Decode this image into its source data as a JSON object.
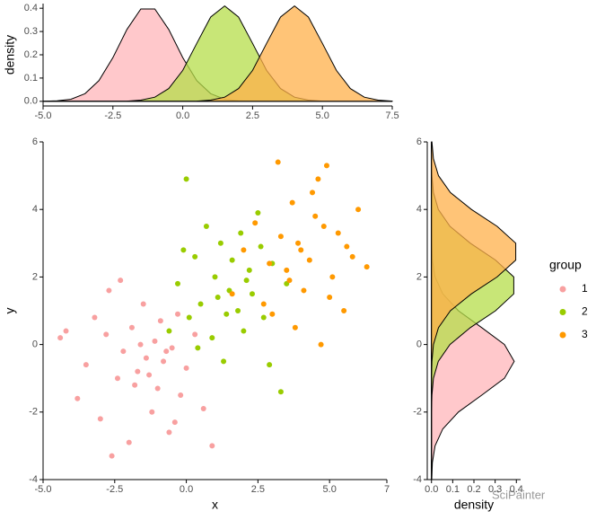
{
  "chart_data": [
    {
      "type": "scatter",
      "x_label": "x",
      "y_label": "y",
      "xlim": [
        -5,
        7
      ],
      "xticks": [
        {
          "value": -5,
          "label": "-5.0"
        },
        {
          "value": -2.5,
          "label": "-2.5"
        },
        {
          "value": 0,
          "label": "0.0"
        },
        {
          "value": 2.5,
          "label": "2.5"
        },
        {
          "value": 5,
          "label": "5.0"
        },
        7
      ],
      "ylim": [
        -4,
        6
      ],
      "yticks": [
        -4,
        -2,
        0,
        2,
        4,
        6
      ],
      "legend_title": "group",
      "legend": "right",
      "series": [
        {
          "name": "1",
          "color": "#f8a0a0",
          "x": [
            -4.4,
            -4.2,
            -3.8,
            -3.5,
            -3.2,
            -3.0,
            -2.8,
            -2.6,
            -2.7,
            -2.4,
            -2.2,
            -2.0,
            -1.9,
            -1.7,
            -1.5,
            -1.4,
            -1.2,
            -1.1,
            -1.0,
            -0.9,
            -0.8,
            -0.6,
            -0.5,
            -0.3,
            -0.2,
            0.0,
            0.3,
            0.6,
            0.9,
            -1.8,
            -1.3,
            -0.7,
            -2.3,
            -1.6,
            -0.4
          ],
          "values": [
            0.2,
            0.4,
            -1.6,
            -0.6,
            0.8,
            -2.2,
            0.3,
            -3.3,
            1.6,
            -1.0,
            -0.2,
            -2.9,
            0.5,
            -0.8,
            1.2,
            -0.4,
            -2.0,
            0.1,
            -1.3,
            0.7,
            -0.5,
            -2.6,
            -0.1,
            0.9,
            -1.5,
            -0.7,
            0.3,
            -1.9,
            -3.0,
            -1.2,
            -0.9,
            -0.2,
            1.9,
            0.0,
            -2.3
          ]
        },
        {
          "name": "2",
          "color": "#99cc00",
          "x": [
            -0.6,
            -0.3,
            0.0,
            0.1,
            0.3,
            0.5,
            0.7,
            0.9,
            1.0,
            1.2,
            1.3,
            1.5,
            1.6,
            1.8,
            1.9,
            2.0,
            2.2,
            2.3,
            2.5,
            2.7,
            2.9,
            3.0,
            3.3,
            3.5,
            0.4,
            1.1,
            2.6,
            -0.1,
            1.4,
            2.1
          ],
          "values": [
            0.4,
            1.8,
            4.9,
            0.8,
            2.6,
            1.2,
            3.5,
            0.2,
            2.0,
            3.0,
            -0.5,
            1.6,
            2.5,
            1.0,
            3.3,
            0.4,
            2.2,
            1.5,
            3.9,
            0.8,
            -0.6,
            2.4,
            -1.4,
            1.8,
            -0.1,
            1.4,
            2.9,
            2.8,
            0.9,
            1.9
          ]
        },
        {
          "name": "3",
          "color": "#ff9900",
          "x": [
            1.6,
            2.0,
            2.4,
            2.7,
            3.0,
            3.2,
            3.5,
            3.7,
            3.9,
            4.1,
            4.3,
            4.5,
            4.7,
            4.9,
            5.1,
            5.3,
            5.5,
            5.8,
            6.0,
            6.3,
            3.8,
            4.4,
            2.9,
            5.0,
            3.3,
            4.0,
            4.8,
            5.6,
            3.6,
            4.6
          ],
          "values": [
            1.5,
            2.8,
            3.6,
            1.2,
            0.9,
            5.4,
            2.2,
            4.2,
            3.0,
            1.6,
            2.5,
            3.8,
            0.0,
            5.3,
            2.0,
            3.3,
            1.0,
            2.6,
            4.0,
            2.3,
            0.5,
            4.5,
            2.4,
            1.4,
            3.2,
            2.8,
            3.5,
            2.9,
            1.9,
            4.9
          ]
        }
      ]
    },
    {
      "type": "density",
      "y_label": "density",
      "xlim": [
        -5,
        7.5
      ],
      "xticks": [
        {
          "value": -5,
          "label": "-5.0"
        },
        {
          "value": -2.5,
          "label": "-2.5"
        },
        {
          "value": 0,
          "label": "0.0"
        },
        {
          "value": 2.5,
          "label": "2.5"
        },
        {
          "value": 5,
          "label": "5.0"
        },
        {
          "value": 7.5,
          "label": "7.5"
        }
      ],
      "ylim": [
        -0.02,
        0.42
      ],
      "yticks": [
        {
          "value": 0,
          "label": "0.0"
        },
        {
          "value": 0.1,
          "label": "0.1"
        },
        {
          "value": 0.2,
          "label": "0.2"
        },
        {
          "value": 0.3,
          "label": "0.3"
        },
        {
          "value": 0.4,
          "label": "0.4"
        }
      ],
      "x": [
        -5,
        -4.5,
        -4,
        -3.5,
        -3,
        -2.5,
        -2,
        -1.5,
        -1,
        -0.5,
        0,
        0.5,
        1,
        1.5,
        2,
        2.5,
        3,
        3.5,
        4,
        4.5,
        5,
        5.5,
        6,
        6.5,
        7,
        7.5
      ],
      "series": [
        {
          "name": "1",
          "color": "#ffb6b9",
          "values": [
            0,
            0.002,
            0.009,
            0.033,
            0.089,
            0.188,
            0.309,
            0.397,
            0.397,
            0.309,
            0.188,
            0.089,
            0.033,
            0.009,
            0.002,
            0,
            0,
            0,
            0,
            0,
            0,
            0,
            0,
            0,
            0,
            0
          ]
        },
        {
          "name": "2",
          "color": "#b5de4a",
          "values": [
            0,
            0,
            0,
            0,
            0,
            0,
            0.001,
            0.005,
            0.018,
            0.055,
            0.133,
            0.249,
            0.362,
            0.41,
            0.362,
            0.249,
            0.133,
            0.055,
            0.018,
            0.005,
            0.001,
            0,
            0,
            0,
            0,
            0
          ]
        },
        {
          "name": "3",
          "color": "#ffb04a",
          "values": [
            0,
            0,
            0,
            0,
            0,
            0,
            0,
            0,
            0,
            0,
            0,
            0.001,
            0.005,
            0.018,
            0.055,
            0.133,
            0.249,
            0.362,
            0.41,
            0.362,
            0.249,
            0.133,
            0.055,
            0.018,
            0.005,
            0.001
          ]
        }
      ]
    },
    {
      "type": "density",
      "orientation": "horizontal",
      "x_label": "density",
      "xlim": [
        -0.02,
        0.42
      ],
      "xticks": [
        {
          "value": 0,
          "label": "0.0"
        },
        {
          "value": 0.1,
          "label": "0.1"
        },
        {
          "value": 0.2,
          "label": "0.2"
        },
        {
          "value": 0.3,
          "label": "0.3"
        },
        {
          "value": 0.4,
          "label": "0.4"
        }
      ],
      "ylim": [
        -4,
        6
      ],
      "yticks": [
        -4,
        -2,
        0,
        2,
        4,
        6
      ],
      "x": [
        -4,
        -3.5,
        -3,
        -2.5,
        -2,
        -1.5,
        -1,
        -0.5,
        0,
        0.5,
        1,
        1.5,
        2,
        2.5,
        3,
        3.5,
        4,
        4.5,
        5,
        5.5,
        6
      ],
      "series": [
        {
          "name": "1",
          "color": "#ffb6b9",
          "values": [
            0.001,
            0.004,
            0.017,
            0.053,
            0.127,
            0.237,
            0.344,
            0.39,
            0.344,
            0.237,
            0.127,
            0.053,
            0.017,
            0.004,
            0.001,
            0,
            0,
            0,
            0,
            0,
            0
          ]
        },
        {
          "name": "2",
          "color": "#b5de4a",
          "values": [
            0,
            0,
            0,
            0,
            0,
            0.002,
            0.009,
            0.032,
            0.087,
            0.183,
            0.302,
            0.388,
            0.388,
            0.302,
            0.183,
            0.087,
            0.032,
            0.009,
            0.002,
            0,
            0
          ]
        },
        {
          "name": "3",
          "color": "#ffb04a",
          "values": [
            0,
            0,
            0,
            0,
            0,
            0,
            0,
            0.002,
            0.009,
            0.033,
            0.089,
            0.188,
            0.309,
            0.397,
            0.397,
            0.309,
            0.188,
            0.089,
            0.033,
            0.009,
            0.002
          ]
        }
      ]
    }
  ],
  "watermark": "SciPainter"
}
